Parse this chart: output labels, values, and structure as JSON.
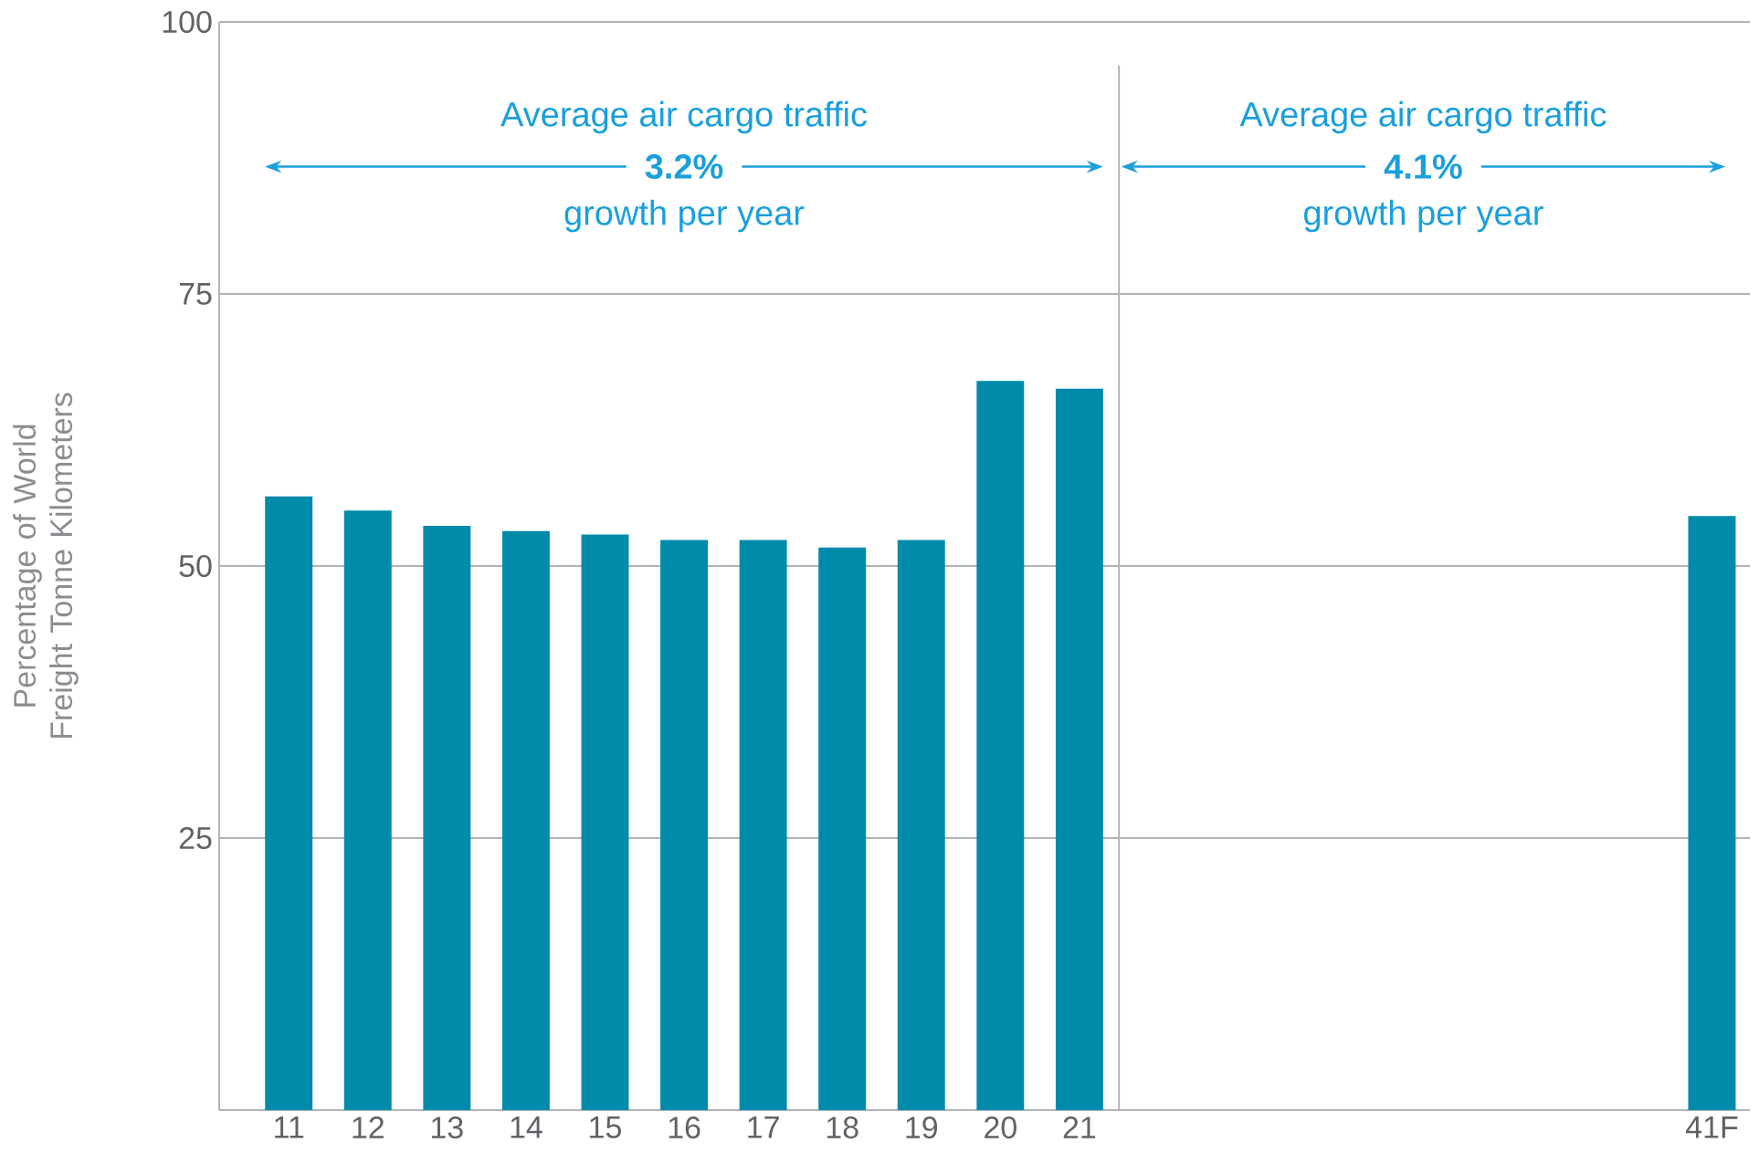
{
  "chart_data": {
    "type": "bar",
    "ylabel": "Percentage of World Freight Tonne Kilometers",
    "categories": [
      "11",
      "12",
      "13",
      "14",
      "15",
      "16",
      "17",
      "18",
      "19",
      "20",
      "21",
      null,
      null,
      null,
      null,
      null,
      null,
      null,
      "41F"
    ],
    "values": [
      56.4,
      55.1,
      53.7,
      53.2,
      52.9,
      52.4,
      52.4,
      51.7,
      52.4,
      67.0,
      66.3,
      null,
      null,
      null,
      null,
      null,
      null,
      null,
      54.6
    ],
    "color": "#008bab",
    "ylim": [
      0,
      100
    ],
    "yticks": [
      25,
      50,
      75,
      100
    ],
    "grid": "y",
    "annotations": [
      "Average air cargo traffic",
      "**3.2%**",
      "growth per year",
      "Average air cargo traffic",
      "**4.1%**",
      "growth per year"
    ]
  }
}
